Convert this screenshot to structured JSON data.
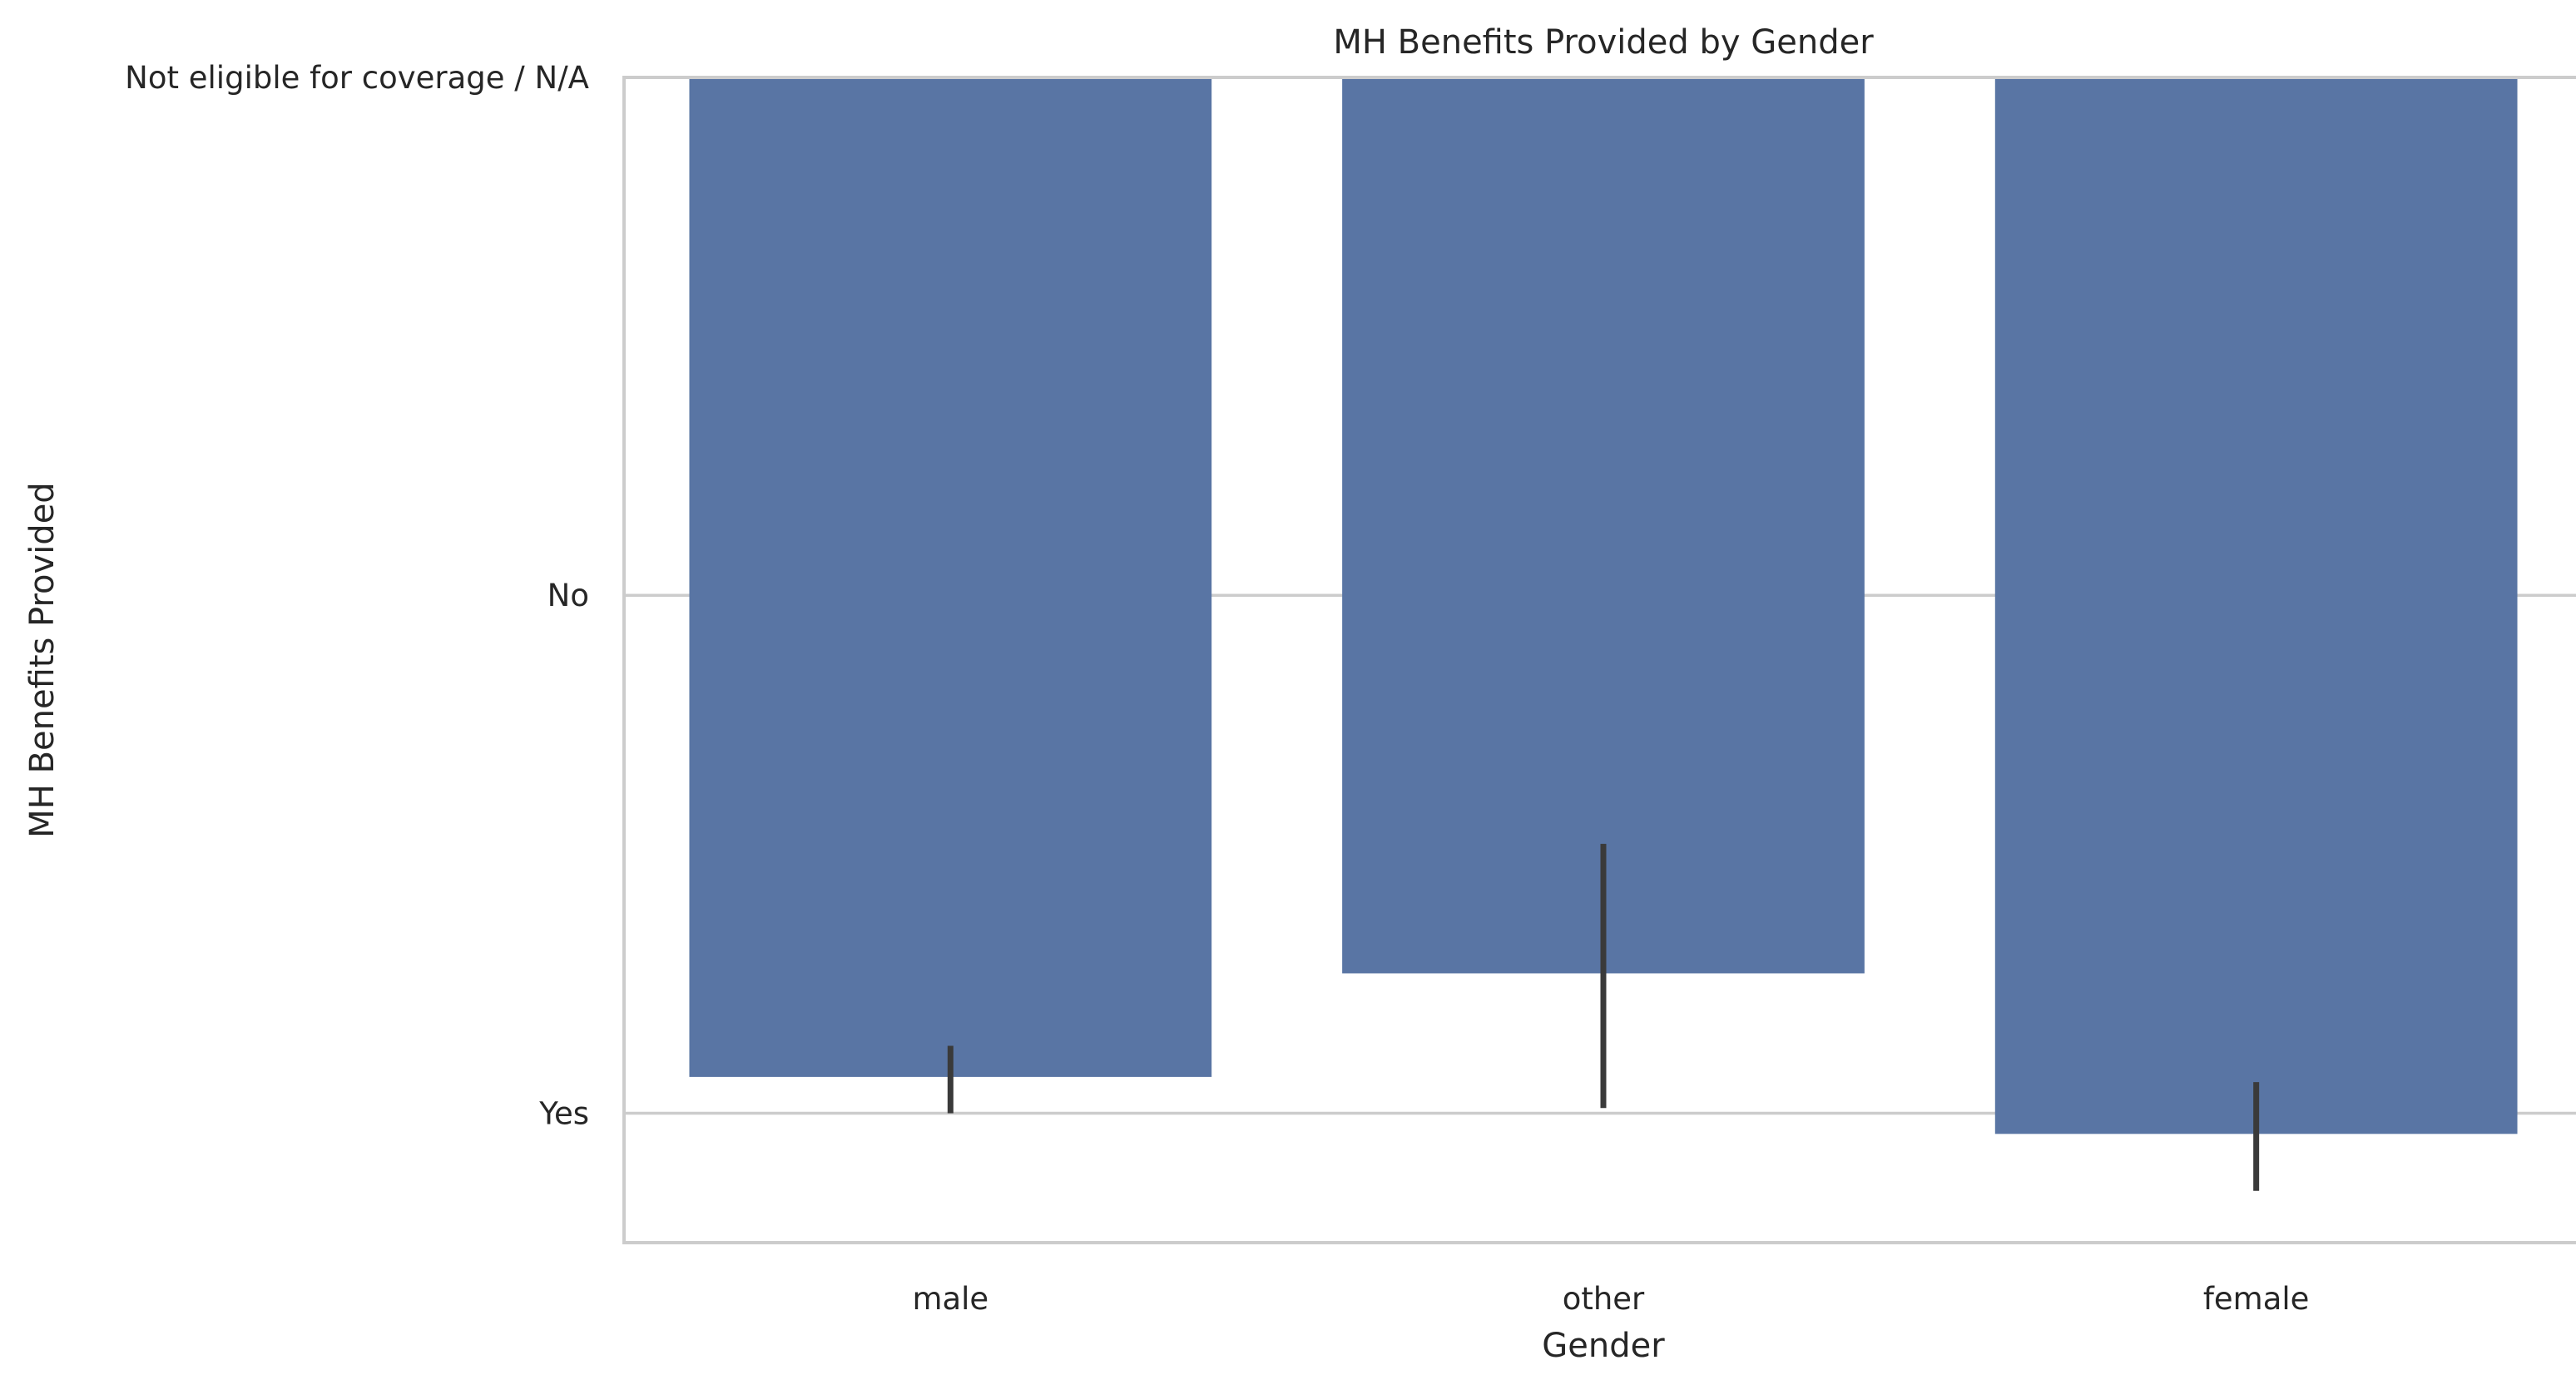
{
  "chart_data": {
    "type": "bar",
    "title": "MH Benefits Provided by Gender",
    "xlabel": "Gender",
    "ylabel": "MH Benefits Provided",
    "categories": [
      "male",
      "other",
      "female"
    ],
    "y_tick_labels": [
      "Yes",
      "No",
      "Not eligible for coverage / N/A"
    ],
    "y_tick_values": [
      0,
      1,
      2
    ],
    "ylim": [
      -0.25,
      2
    ],
    "values": [
      0.07,
      0.27,
      -0.04
    ],
    "error_bars": [
      {
        "low": 0.0,
        "high": 0.13
      },
      {
        "low": 0.01,
        "high": 0.52
      },
      {
        "low": -0.15,
        "high": 0.06
      }
    ],
    "grid": true,
    "color": "#5975a4",
    "error_color": "#3a3a3a"
  }
}
